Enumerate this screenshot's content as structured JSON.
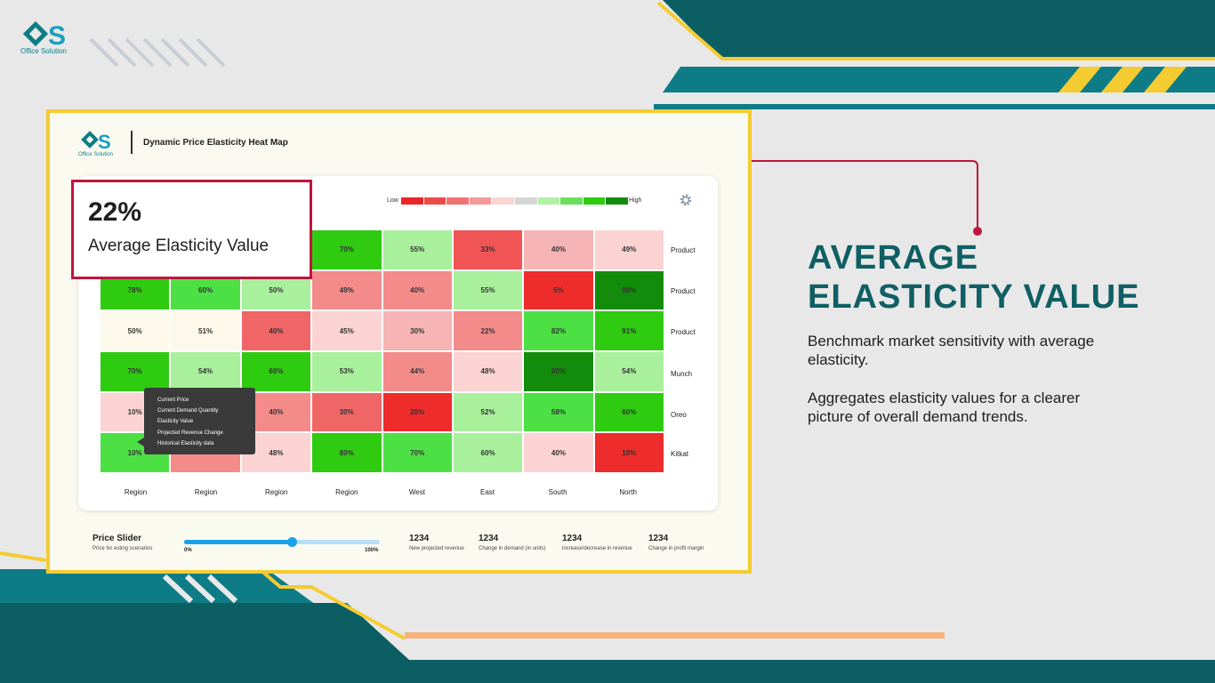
{
  "brand": {
    "name": "Office Solution"
  },
  "dashboard": {
    "title": "Dynamic Price Elasticity Heat Map",
    "legend": {
      "low": "Low",
      "high": "High",
      "colors": [
        "#e8262a",
        "#ee4a4a",
        "#f07373",
        "#f49a9a",
        "#fbd3d3",
        "#d6d6d6",
        "#b1f0a6",
        "#69e05c",
        "#2ecb10",
        "#138c0b"
      ]
    },
    "rows": [
      {
        "label": "Product",
        "cells": [
          {
            "v": "",
            "c": "#ffffff"
          },
          {
            "v": "",
            "c": "#ffffff"
          },
          {
            "v": "",
            "c": "#ffffff"
          },
          {
            "v": "70%",
            "c": "#2ecb10"
          },
          {
            "v": "55%",
            "c": "#a9f09c"
          },
          {
            "v": "33%",
            "c": "#f05454"
          },
          {
            "v": "40%",
            "c": "#f7b4b4"
          },
          {
            "v": "49%",
            "c": "#fbd3d3"
          }
        ]
      },
      {
        "label": "Product",
        "cells": [
          {
            "v": "78%",
            "c": "#2ecb10"
          },
          {
            "v": "60%",
            "c": "#4de044"
          },
          {
            "v": "50%",
            "c": "#a9f09c"
          },
          {
            "v": "49%",
            "c": "#f48b8b"
          },
          {
            "v": "40%",
            "c": "#f48b8b"
          },
          {
            "v": "55%",
            "c": "#a9f09c"
          },
          {
            "v": "5%",
            "c": "#ee2c2c"
          },
          {
            "v": "98%",
            "c": "#138c0b"
          }
        ]
      },
      {
        "label": "Product",
        "cells": [
          {
            "v": "50%",
            "c": "#fcf8ea"
          },
          {
            "v": "51%",
            "c": "#fcf8ea"
          },
          {
            "v": "40%",
            "c": "#f06666"
          },
          {
            "v": "45%",
            "c": "#fbd3d3"
          },
          {
            "v": "30%",
            "c": "#f7b4b4"
          },
          {
            "v": "22%",
            "c": "#f48b8b"
          },
          {
            "v": "82%",
            "c": "#4de044"
          },
          {
            "v": "91%",
            "c": "#2ecb10"
          }
        ]
      },
      {
        "label": "Munch",
        "cells": [
          {
            "v": "70%",
            "c": "#2ecb10"
          },
          {
            "v": "54%",
            "c": "#a9f09c"
          },
          {
            "v": "60%",
            "c": "#2ecb10"
          },
          {
            "v": "53%",
            "c": "#a9f09c"
          },
          {
            "v": "44%",
            "c": "#f48b8b"
          },
          {
            "v": "48%",
            "c": "#fbd3d3"
          },
          {
            "v": "90%",
            "c": "#138c0b"
          },
          {
            "v": "54%",
            "c": "#a9f09c"
          }
        ]
      },
      {
        "label": "Oreo",
        "cells": [
          {
            "v": "10%",
            "c": "#fbd3d3"
          },
          {
            "v": "",
            "c": "#f7b4b4"
          },
          {
            "v": "40%",
            "c": "#f48b8b"
          },
          {
            "v": "30%",
            "c": "#f06666"
          },
          {
            "v": "20%",
            "c": "#ee2c2c"
          },
          {
            "v": "52%",
            "c": "#a9f09c"
          },
          {
            "v": "58%",
            "c": "#4de044"
          },
          {
            "v": "60%",
            "c": "#2ecb10"
          }
        ]
      },
      {
        "label": "Kitkat",
        "cells": [
          {
            "v": "10%",
            "c": "#4de044"
          },
          {
            "v": "",
            "c": "#f48b8b"
          },
          {
            "v": "48%",
            "c": "#fbd3d3"
          },
          {
            "v": "80%",
            "c": "#2ecb10"
          },
          {
            "v": "70%",
            "c": "#4de044"
          },
          {
            "v": "60%",
            "c": "#a9f09c"
          },
          {
            "v": "40%",
            "c": "#fbd3d3"
          },
          {
            "v": "10%",
            "c": "#ee2c2c"
          }
        ]
      }
    ],
    "columns": [
      "Region",
      "Region",
      "Region",
      "Region",
      "West",
      "East",
      "South",
      "North"
    ],
    "tooltip": [
      "Current Price",
      "Current Demand Quantity",
      "Elasticity Value",
      "Projected Revenue Change",
      "Historical Elasticity data"
    ],
    "highlight": {
      "value": "22%",
      "label": "Average Elasticity Value"
    },
    "slider": {
      "title": "Price Slider",
      "subtitle": "Price for esting scenarios",
      "min": "0%",
      "max": "100%",
      "level": 0.55
    },
    "metrics": [
      {
        "value": "1234",
        "label": "New projected revenue"
      },
      {
        "value": "1234",
        "label": "Change in demand (in units)"
      },
      {
        "value": "1234",
        "label": "increase/decrease in revenue"
      },
      {
        "value": "1234",
        "label": "Change in profit margin"
      }
    ]
  },
  "panel": {
    "heading_line1": "AVERAGE",
    "heading_line2": "ELASTICITY VALUE",
    "desc1": "Benchmark market sensitivity with average elasticity.",
    "desc2": "Aggregates elasticity values for a clearer picture of overall demand trends."
  },
  "colors": {
    "teal": "#0b5f63",
    "teal_light": "#0e7c86",
    "yellow": "#f4cc32",
    "crimson": "#c0143c",
    "orange": "#f6b27c"
  }
}
